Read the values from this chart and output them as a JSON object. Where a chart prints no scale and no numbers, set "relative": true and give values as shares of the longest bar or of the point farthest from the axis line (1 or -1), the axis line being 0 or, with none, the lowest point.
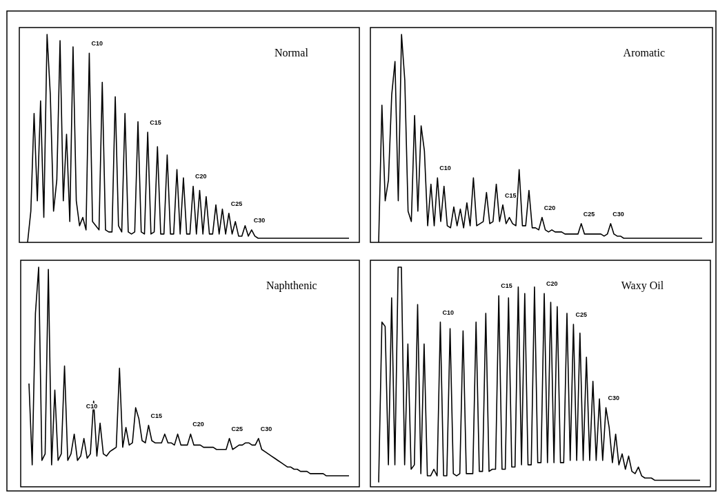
{
  "chart_data": [
    {
      "type": "line",
      "title": "Normal",
      "relative": true,
      "color": "#000000",
      "categories": [
        null,
        null,
        null,
        null,
        null,
        null,
        null,
        null,
        null,
        null,
        null,
        null,
        null,
        null,
        null,
        null,
        null,
        null,
        null,
        null,
        null,
        null,
        null,
        null,
        null,
        null,
        null,
        null,
        null,
        null,
        null,
        null,
        null,
        null,
        null,
        null,
        null,
        null,
        null,
        null,
        null,
        null,
        null,
        null,
        null,
        null,
        null,
        null,
        null,
        null,
        null,
        null,
        null,
        null,
        null,
        null,
        null,
        null,
        null,
        null,
        null,
        null,
        null,
        null,
        null,
        null,
        null,
        null,
        null,
        null,
        null,
        null,
        null,
        null,
        null,
        null,
        null,
        null,
        null,
        null,
        null,
        null,
        null,
        null,
        null,
        null,
        null,
        null,
        null,
        null,
        null,
        null,
        null,
        null,
        null,
        null,
        null,
        null,
        null,
        null
      ],
      "values": [
        0,
        0.15,
        0.62,
        0.2,
        0.68,
        0.12,
        1,
        0.71,
        0.15,
        0.3,
        0.97,
        0.2,
        0.52,
        0.1,
        0.94,
        0.2,
        0.08,
        0.12,
        0.06,
        0.91,
        0.1,
        0.08,
        0.06,
        0.77,
        0.06,
        0.05,
        0.05,
        0.7,
        0.08,
        0.05,
        0.62,
        0.05,
        0.04,
        0.05,
        0.58,
        0.05,
        0.04,
        0.53,
        0.04,
        0.05,
        0.46,
        0.04,
        0.04,
        0.42,
        0.04,
        0.04,
        0.35,
        0.04,
        0.31,
        0.04,
        0.04,
        0.27,
        0.04,
        0.25,
        0.04,
        0.22,
        0.04,
        0.04,
        0.18,
        0.04,
        0.16,
        0.04,
        0.14,
        0.04,
        0.1,
        0.03,
        0.03,
        0.08,
        0.03,
        0.06,
        0.03,
        0.02,
        0.02,
        0.02,
        0.02,
        0.02,
        0.02,
        0.02,
        0.02,
        0.02,
        0.02,
        0.02,
        0.02,
        0.02,
        0.02,
        0.02,
        0.02,
        0.02,
        0.02,
        0.02,
        0.02,
        0.02,
        0.02,
        0.02,
        0.02,
        0.02,
        0.02,
        0.02,
        0.02,
        0.02
      ],
      "annotations": [
        "C10",
        "C15",
        "C20",
        "C25",
        "C30"
      ]
    },
    {
      "type": "line",
      "title": "Aromatic",
      "relative": true,
      "color": "#000000",
      "categories": [
        null,
        null,
        null,
        null,
        null,
        null,
        null,
        null,
        null,
        null,
        null,
        null,
        null,
        null,
        null,
        null,
        null,
        null,
        null,
        null,
        null,
        null,
        null,
        null,
        null,
        null,
        null,
        null,
        null,
        null,
        null,
        null,
        null,
        null,
        null,
        null,
        null,
        null,
        null,
        null,
        null,
        null,
        null,
        null,
        null,
        null,
        null,
        null,
        null,
        null,
        null,
        null,
        null,
        null,
        null,
        null,
        null,
        null,
        null,
        null,
        null,
        null,
        null,
        null,
        null,
        null,
        null,
        null,
        null,
        null,
        null,
        null,
        null,
        null,
        null,
        null,
        null,
        null,
        null,
        null,
        null,
        null,
        null,
        null,
        null,
        null,
        null,
        null,
        null,
        null,
        null,
        null,
        null,
        null,
        null,
        null,
        null,
        null,
        null,
        null
      ],
      "values": [
        0,
        0.66,
        0.2,
        0.3,
        0.71,
        0.87,
        0.2,
        1,
        0.78,
        0.15,
        0.1,
        0.61,
        0.15,
        0.56,
        0.44,
        0.08,
        0.28,
        0.08,
        0.31,
        0.1,
        0.27,
        0.08,
        0.07,
        0.17,
        0.08,
        0.16,
        0.07,
        0.19,
        0.08,
        0.31,
        0.08,
        0.09,
        0.1,
        0.24,
        0.09,
        0.1,
        0.28,
        0.1,
        0.18,
        0.09,
        0.12,
        0.09,
        0.08,
        0.35,
        0.08,
        0.08,
        0.25,
        0.07,
        0.07,
        0.06,
        0.12,
        0.06,
        0.05,
        0.06,
        0.05,
        0.05,
        0.05,
        0.04,
        0.04,
        0.04,
        0.04,
        0.04,
        0.09,
        0.04,
        0.04,
        0.04,
        0.04,
        0.04,
        0.04,
        0.03,
        0.04,
        0.09,
        0.04,
        0.03,
        0.03,
        0.02,
        0.02,
        0.02,
        0.02,
        0.02,
        0.02,
        0.02,
        0.02,
        0.02,
        0.02,
        0.02,
        0.02,
        0.02,
        0.02,
        0.02,
        0.02,
        0.02,
        0.02,
        0.02,
        0.02,
        0.02,
        0.02,
        0.02,
        0.02,
        0.02
      ],
      "annotations": [
        "C10",
        "C15",
        "C20",
        "C25",
        "C30"
      ]
    },
    {
      "type": "line",
      "title": "Naphthenic",
      "relative": true,
      "color": "#000000",
      "categories": [
        null,
        null,
        null,
        null,
        null,
        null,
        null,
        null,
        null,
        null,
        null,
        null,
        null,
        null,
        null,
        null,
        null,
        null,
        null,
        null,
        null,
        null,
        null,
        null,
        null,
        null,
        null,
        null,
        null,
        null,
        null,
        null,
        null,
        null,
        null,
        null,
        null,
        null,
        null,
        null,
        null,
        null,
        null,
        null,
        null,
        null,
        null,
        null,
        null,
        null,
        null,
        null,
        null,
        null,
        null,
        null,
        null,
        null,
        null,
        null,
        null,
        null,
        null,
        null,
        null,
        null,
        null,
        null,
        null,
        null,
        null,
        null,
        null,
        null,
        null,
        null,
        null,
        null,
        null,
        null,
        null,
        null,
        null,
        null,
        null,
        null,
        null,
        null,
        null,
        null,
        null,
        null,
        null,
        null,
        null,
        null,
        null,
        null,
        null,
        null
      ],
      "values": [
        0.47,
        0.1,
        0.79,
        1,
        0.12,
        0.15,
        0.99,
        0.1,
        0.44,
        0.12,
        0.15,
        0.55,
        0.12,
        0.15,
        0.24,
        0.12,
        0.14,
        0.22,
        0.13,
        0.15,
        0.39,
        0.14,
        0.29,
        0.15,
        0.14,
        0.16,
        0.17,
        0.18,
        0.54,
        0.18,
        0.27,
        0.19,
        0.2,
        0.36,
        0.31,
        0.21,
        0.2,
        0.28,
        0.21,
        0.2,
        0.2,
        0.2,
        0.24,
        0.2,
        0.2,
        0.19,
        0.24,
        0.19,
        0.19,
        0.19,
        0.24,
        0.19,
        0.19,
        0.19,
        0.18,
        0.18,
        0.18,
        0.18,
        0.17,
        0.17,
        0.17,
        0.17,
        0.22,
        0.17,
        0.18,
        0.19,
        0.19,
        0.2,
        0.2,
        0.19,
        0.19,
        0.22,
        0.17,
        0.16,
        0.15,
        0.14,
        0.13,
        0.12,
        0.11,
        0.1,
        0.09,
        0.09,
        0.08,
        0.08,
        0.07,
        0.07,
        0.07,
        0.06,
        0.06,
        0.06,
        0.06,
        0.06,
        0.05,
        0.05,
        0.05,
        0.05,
        0.05,
        0.05,
        0.05,
        0.05
      ],
      "annotations": [
        "C10",
        "C15",
        "C20",
        "C25",
        "C30"
      ]
    },
    {
      "type": "line",
      "title": "Waxy Oil",
      "relative": true,
      "color": "#000000",
      "categories": [
        null,
        null,
        null,
        null,
        null,
        null,
        null,
        null,
        null,
        null,
        null,
        null,
        null,
        null,
        null,
        null,
        null,
        null,
        null,
        null,
        null,
        null,
        null,
        null,
        null,
        null,
        null,
        null,
        null,
        null,
        null,
        null,
        null,
        null,
        null,
        null,
        null,
        null,
        null,
        null,
        null,
        null,
        null,
        null,
        null,
        null,
        null,
        null,
        null,
        null,
        null,
        null,
        null,
        null,
        null,
        null,
        null,
        null,
        null,
        null,
        null,
        null,
        null,
        null,
        null,
        null,
        null,
        null,
        null,
        null,
        null,
        null,
        null,
        null,
        null,
        null,
        null,
        null,
        null,
        null,
        null,
        null,
        null,
        null,
        null,
        null,
        null,
        null,
        null,
        null,
        null,
        null,
        null,
        null,
        null,
        null,
        null,
        null,
        null,
        null
      ],
      "values": [
        0.02,
        0.75,
        0.73,
        0.1,
        0.86,
        0.1,
        1,
        1,
        0.1,
        0.65,
        0.08,
        0.1,
        0.83,
        0.06,
        0.65,
        0.05,
        0.05,
        0.08,
        0.05,
        0.75,
        0.05,
        0.05,
        0.72,
        0.06,
        0.05,
        0.06,
        0.71,
        0.06,
        0.06,
        0.06,
        0.75,
        0.07,
        0.07,
        0.79,
        0.07,
        0.08,
        0.08,
        0.87,
        0.08,
        0.08,
        0.86,
        0.09,
        0.09,
        0.91,
        0.1,
        0.88,
        0.1,
        0.1,
        0.91,
        0.11,
        0.11,
        0.88,
        0.11,
        0.84,
        0.11,
        0.82,
        0.11,
        0.11,
        0.79,
        0.12,
        0.74,
        0.12,
        0.7,
        0.12,
        0.59,
        0.12,
        0.48,
        0.12,
        0.4,
        0.12,
        0.36,
        0.27,
        0.11,
        0.24,
        0.1,
        0.15,
        0.08,
        0.14,
        0.07,
        0.06,
        0.09,
        0.05,
        0.04,
        0.04,
        0.04,
        0.03,
        0.03,
        0.03,
        0.03,
        0.03,
        0.03,
        0.03,
        0.03,
        0.03,
        0.03,
        0.03,
        0.03,
        0.03,
        0.03,
        0.03
      ],
      "annotations": [
        "C10",
        "C15",
        "C20",
        "C25",
        "C30"
      ]
    }
  ]
}
